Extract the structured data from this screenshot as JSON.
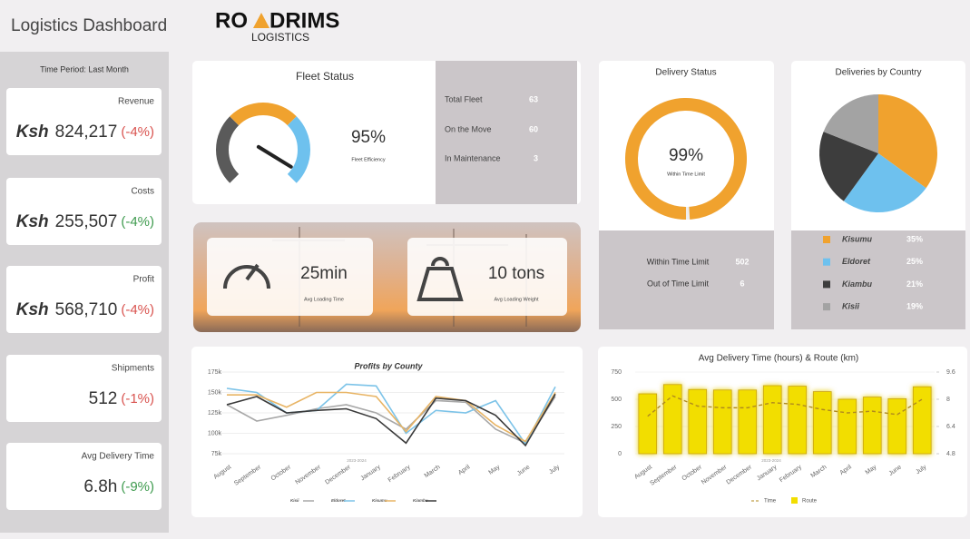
{
  "header": {
    "title": "Logistics Dashboard",
    "logo": {
      "left": "RO",
      "right": "DRIMS",
      "tagline": "LOGISTICS"
    }
  },
  "sidebar": {
    "period": "Time Period: Last Month",
    "kpis": [
      {
        "label": "Revenue",
        "currency": "Ksh",
        "value": "824,217",
        "change": "(-4%)",
        "change_color": "#d9534f"
      },
      {
        "label": "Costs",
        "currency": "Ksh",
        "value": "255,507",
        "change": "(-4%)",
        "change_color": "#3f9b4f"
      },
      {
        "label": "Profit",
        "currency": "Ksh",
        "value": "568,710",
        "change": "(-4%)",
        "change_color": "#d9534f"
      },
      {
        "label": "Shipments",
        "value": "512",
        "change": "(-1%)",
        "change_color": "#d9534f"
      },
      {
        "label": "Avg Delivery Time",
        "value": "6.8h",
        "change": "(-9%)",
        "change_color": "#3f9b4f"
      }
    ]
  },
  "fleet_stats": [
    {
      "label": "Total Fleet",
      "value": 63
    },
    {
      "label": "On the Move",
      "value": 60
    },
    {
      "label": "In Maintenance",
      "value": 3
    }
  ],
  "loading": [
    {
      "value": "25min",
      "label": "Avg Loading Time"
    },
    {
      "value": "10 tons",
      "label": "Avg Loading Weight"
    }
  ],
  "delivery_stats": [
    {
      "label": "Within Time Limit",
      "value": 502
    },
    {
      "label": "Out of Time Limit",
      "value": 6
    }
  ],
  "chart_data": [
    {
      "type": "gauge",
      "title": "Fleet Status",
      "value": 95,
      "value_label": "95%",
      "label": "Fleet Efficiency",
      "ylim": [
        0,
        100
      ],
      "color": "#222222"
    },
    {
      "type": "donut",
      "title": "Delivery Status",
      "value": 99,
      "value_label": "99%",
      "label": "Within Time Limit",
      "ylim": [
        0,
        100
      ],
      "color": "#f0a22e"
    },
    {
      "type": "pie",
      "title": "Deliveries by Country",
      "categories": [
        "Kisumu",
        "Eldoret",
        "Kiambu",
        "Kisii"
      ],
      "values": [
        35,
        25,
        21,
        19
      ],
      "value_labels": [
        "35%",
        "25%",
        "21%",
        "19%"
      ],
      "colors": [
        "#f0a22e",
        "#6ec1ee",
        "#3d3d3d",
        "#a3a3a3"
      ]
    },
    {
      "type": "line",
      "title": "Profits by County",
      "subtitle": "2023-2024",
      "categories": [
        "August",
        "September",
        "October",
        "November",
        "December",
        "January",
        "February",
        "March",
        "April",
        "May",
        "June",
        "July"
      ],
      "ylim": [
        75000,
        175000
      ],
      "yticks": [
        {
          "value": 75000,
          "label": "75k"
        },
        {
          "value": 100000,
          "label": "100k"
        },
        {
          "value": 125000,
          "label": "125k"
        },
        {
          "value": 150000,
          "label": "150k"
        },
        {
          "value": 175000,
          "label": "175k"
        }
      ],
      "grid": true,
      "series": [
        {
          "name": "Kisii",
          "color": "#a8a8a8",
          "values": [
            135000,
            115000,
            122000,
            130000,
            135000,
            125000,
            105000,
            140000,
            138000,
            105000,
            88000,
            145000
          ]
        },
        {
          "name": "Eldoret",
          "color": "#7cc3e8",
          "values": [
            155000,
            150000,
            125000,
            128000,
            160000,
            158000,
            100000,
            128000,
            125000,
            140000,
            87000,
            157000
          ]
        },
        {
          "name": "Kisumu",
          "color": "#e8b464",
          "values": [
            147000,
            147000,
            132000,
            150000,
            150000,
            145000,
            102000,
            145000,
            140000,
            110000,
            90000,
            150000
          ]
        },
        {
          "name": "Kiambu",
          "color": "#3a3a3a",
          "values": [
            135000,
            145000,
            125000,
            128000,
            130000,
            118000,
            88000,
            143000,
            140000,
            122000,
            85000,
            148000
          ]
        }
      ]
    },
    {
      "type": "bar_line",
      "title": "Avg Delivery Time (hours) & Route (km)",
      "subtitle": "2023-2024",
      "categories": [
        "August",
        "September",
        "October",
        "November",
        "December",
        "January",
        "February",
        "March",
        "April",
        "May",
        "June",
        "July"
      ],
      "ylim": [
        0,
        750
      ],
      "yticks": [
        0,
        250,
        500,
        750
      ],
      "y2lim": [
        4.8,
        9.6
      ],
      "y2ticks": [
        4.8,
        6.4,
        8,
        9.6
      ],
      "series": [
        {
          "name": "Time",
          "type": "line",
          "axis": "y2",
          "color": "#b08a1e",
          "values": [
            7.0,
            8.2,
            7.6,
            7.5,
            7.5,
            7.8,
            7.7,
            7.4,
            7.2,
            7.3,
            7.1,
            8.0
          ]
        },
        {
          "name": "Route",
          "type": "bar",
          "color": "#f2de00",
          "values": [
            550,
            635,
            590,
            585,
            585,
            625,
            620,
            570,
            500,
            520,
            505,
            615
          ]
        }
      ]
    }
  ]
}
